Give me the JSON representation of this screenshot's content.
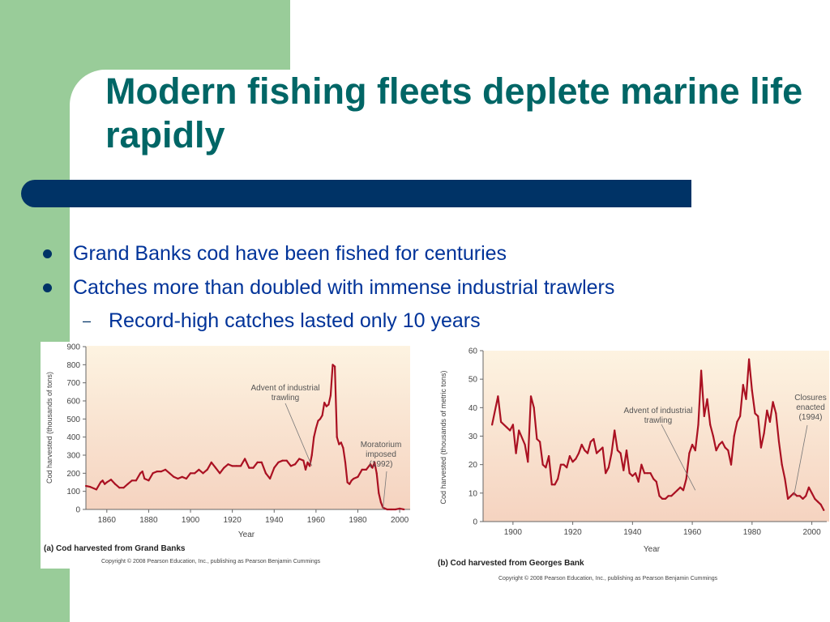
{
  "slide": {
    "title": "Modern fishing fleets deplete marine life rapidly",
    "bullets": [
      "Grand Banks cod have been fished for centuries",
      "Catches more than doubled with immense industrial trawlers"
    ],
    "sub_bullets": [
      "Record-high catches lasted only 10 years"
    ],
    "colors": {
      "title": "#006666",
      "text": "#003399",
      "bar": "#003366",
      "sidebar": "#99cc99",
      "line": "#aa1122"
    }
  },
  "chart_data": [
    {
      "type": "line",
      "title": "(a) Cod harvested from Grand Banks",
      "xlabel": "Year",
      "ylabel": "Cod harvested (thousands of tons)",
      "xlim": [
        1850,
        2005
      ],
      "ylim": [
        0,
        900
      ],
      "xticks": [
        1860,
        1880,
        1900,
        1920,
        1940,
        1960,
        1980,
        2000
      ],
      "yticks": [
        0,
        100,
        200,
        300,
        400,
        500,
        600,
        700,
        800,
        900
      ],
      "grid": false,
      "annotations": [
        {
          "label": "Advent of industrial trawling",
          "x": 1958,
          "y": 240
        },
        {
          "label": "Moratorium imposed (1992)",
          "x": 1992,
          "y": 5
        }
      ],
      "copyright": "Copyright © 2008 Pearson Education, Inc., publishing as Pearson Benjamin Cummings",
      "series": [
        {
          "x": [
            1850,
            1852,
            1855,
            1857,
            1858,
            1859,
            1860,
            1862,
            1864,
            1866,
            1868,
            1870,
            1872,
            1874,
            1876,
            1877,
            1878,
            1880,
            1882,
            1884,
            1886,
            1888,
            1890,
            1892,
            1894,
            1896,
            1898,
            1900,
            1902,
            1904,
            1906,
            1908,
            1910,
            1912,
            1914,
            1916,
            1918,
            1920,
            1922,
            1924,
            1926,
            1928,
            1930,
            1932,
            1934,
            1936,
            1938,
            1940,
            1942,
            1944,
            1946,
            1948,
            1950,
            1952,
            1954,
            1955,
            1956,
            1957,
            1958,
            1959,
            1960,
            1961,
            1962,
            1963,
            1964,
            1965,
            1966,
            1967,
            1968,
            1969,
            1970,
            1971,
            1972,
            1973,
            1974,
            1975,
            1976,
            1977,
            1978,
            1980,
            1982,
            1984,
            1986,
            1987,
            1988,
            1989,
            1990,
            1991,
            1992,
            1994,
            1996,
            1998,
            2000,
            2002
          ],
          "values": [
            130,
            125,
            110,
            150,
            160,
            140,
            150,
            165,
            140,
            120,
            120,
            140,
            160,
            160,
            200,
            210,
            170,
            160,
            200,
            210,
            210,
            220,
            200,
            180,
            170,
            180,
            170,
            200,
            200,
            220,
            200,
            220,
            260,
            230,
            200,
            230,
            250,
            240,
            240,
            240,
            280,
            230,
            230,
            260,
            260,
            200,
            170,
            230,
            260,
            270,
            270,
            240,
            250,
            280,
            270,
            220,
            260,
            240,
            300,
            400,
            450,
            490,
            500,
            520,
            590,
            570,
            580,
            630,
            800,
            790,
            400,
            360,
            370,
            340,
            260,
            150,
            140,
            160,
            170,
            180,
            220,
            220,
            250,
            230,
            260,
            200,
            90,
            40,
            10,
            0,
            0,
            0,
            5,
            0
          ]
        }
      ]
    },
    {
      "type": "line",
      "title": "(b) Cod harvested from Georges Bank",
      "xlabel": "Year",
      "ylabel": "Cod harvested (thousands of metric tons)",
      "xlim": [
        1890,
        2005
      ],
      "ylim": [
        0,
        60
      ],
      "xticks": [
        1900,
        1920,
        1940,
        1960,
        1980,
        2000
      ],
      "yticks": [
        0,
        10,
        20,
        30,
        40,
        50,
        60
      ],
      "grid": false,
      "annotations": [
        {
          "label": "Advent of industrial trawling",
          "x": 1961,
          "y": 11
        },
        {
          "label": "Closures enacted (1994)",
          "x": 1994,
          "y": 9
        }
      ],
      "copyright": "Copyright © 2008 Pearson Education, Inc., publishing as Pearson Benjamin Cummings",
      "series": [
        {
          "x": [
            1893,
            1895,
            1896,
            1898,
            1899,
            1900,
            1901,
            1902,
            1904,
            1905,
            1906,
            1907,
            1908,
            1909,
            1910,
            1911,
            1912,
            1913,
            1914,
            1915,
            1916,
            1917,
            1918,
            1919,
            1920,
            1921,
            1922,
            1923,
            1924,
            1925,
            1926,
            1927,
            1928,
            1929,
            1930,
            1931,
            1932,
            1933,
            1934,
            1935,
            1936,
            1937,
            1938,
            1939,
            1940,
            1941,
            1942,
            1943,
            1944,
            1945,
            1946,
            1947,
            1948,
            1949,
            1950,
            1951,
            1952,
            1953,
            1954,
            1955,
            1956,
            1957,
            1958,
            1959,
            1960,
            1961,
            1962,
            1963,
            1964,
            1965,
            1966,
            1967,
            1968,
            1969,
            1970,
            1971,
            1972,
            1973,
            1974,
            1975,
            1976,
            1977,
            1978,
            1979,
            1980,
            1981,
            1982,
            1983,
            1984,
            1985,
            1986,
            1987,
            1988,
            1989,
            1990,
            1991,
            1992,
            1993,
            1994,
            1995,
            1996,
            1997,
            1998,
            1999,
            2000,
            2001,
            2002,
            2003,
            2004
          ],
          "values": [
            34,
            44,
            35,
            33,
            32,
            34,
            24,
            32,
            27,
            21,
            44,
            40,
            29,
            28,
            20,
            19,
            23,
            13,
            13,
            15,
            20,
            20,
            19,
            23,
            21,
            22,
            24,
            27,
            25,
            24,
            28,
            29,
            24,
            25,
            26,
            17,
            19,
            24,
            32,
            25,
            24,
            18,
            25,
            17,
            16,
            17,
            14,
            20,
            17,
            17,
            17,
            15,
            14,
            9,
            8,
            8,
            9,
            9,
            10,
            11,
            12,
            11,
            15,
            24,
            27,
            25,
            34,
            53,
            37,
            43,
            34,
            30,
            25,
            27,
            28,
            26,
            25,
            20,
            30,
            35,
            37,
            48,
            43,
            57,
            46,
            38,
            37,
            26,
            31,
            39,
            35,
            42,
            38,
            28,
            20,
            15,
            8,
            9,
            10,
            9,
            9,
            8,
            9,
            12,
            10,
            8,
            7,
            6,
            4
          ]
        }
      ]
    }
  ]
}
